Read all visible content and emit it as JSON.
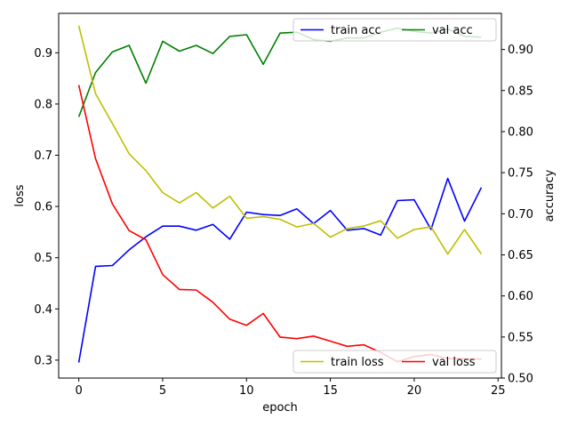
{
  "chart_data": {
    "type": "line",
    "xlabel": "epoch",
    "ylabel_left": "loss",
    "ylabel_right": "accuracy",
    "xlim": [
      -1.2,
      25.2
    ],
    "ylim_left": [
      0.265,
      0.977
    ],
    "ylim_right": [
      0.5,
      0.944
    ],
    "xticks": [
      "0",
      "5",
      "10",
      "15",
      "20",
      "25"
    ],
    "yticks_left": [
      "0.3",
      "0.4",
      "0.5",
      "0.6",
      "0.7",
      "0.8",
      "0.9"
    ],
    "yticks_right": [
      "0.50",
      "0.55",
      "0.60",
      "0.65",
      "0.70",
      "0.75",
      "0.80",
      "0.85",
      "0.90"
    ],
    "x": [
      0,
      1,
      2,
      3,
      4,
      5,
      6,
      7,
      8,
      9,
      10,
      11,
      12,
      13,
      14,
      15,
      16,
      17,
      18,
      19,
      20,
      21,
      22,
      23,
      24
    ],
    "series": [
      {
        "name": "train acc",
        "axis": "right",
        "color": "#0000ff",
        "values": [
          0.519,
          0.636,
          0.637,
          0.656,
          0.672,
          0.685,
          0.685,
          0.68,
          0.687,
          0.669,
          0.702,
          0.699,
          0.698,
          0.706,
          0.688,
          0.704,
          0.68,
          0.682,
          0.674,
          0.716,
          0.717,
          0.681,
          0.743,
          0.691,
          0.732
        ]
      },
      {
        "name": "val acc",
        "axis": "right",
        "color": "#008000",
        "values": [
          0.818,
          0.872,
          0.897,
          0.905,
          0.859,
          0.91,
          0.898,
          0.905,
          0.895,
          0.916,
          0.918,
          0.882,
          0.92,
          0.921,
          0.912,
          0.91,
          0.914,
          0.914,
          0.921,
          0.926,
          0.922,
          0.92,
          0.925,
          0.916,
          0.915
        ]
      },
      {
        "name": "train loss",
        "axis": "left",
        "color": "#bfbf00",
        "values": [
          0.953,
          0.82,
          0.762,
          0.703,
          0.67,
          0.627,
          0.607,
          0.627,
          0.597,
          0.62,
          0.577,
          0.58,
          0.575,
          0.56,
          0.567,
          0.54,
          0.557,
          0.562,
          0.572,
          0.538,
          0.555,
          0.56,
          0.507,
          0.555,
          0.507
        ]
      },
      {
        "name": "val loss",
        "axis": "left",
        "color": "#ff0000",
        "values": [
          0.837,
          0.693,
          0.605,
          0.553,
          0.535,
          0.467,
          0.438,
          0.437,
          0.413,
          0.38,
          0.368,
          0.391,
          0.345,
          0.342,
          0.347,
          0.337,
          0.327,
          0.33,
          0.315,
          0.297,
          0.307,
          0.311,
          0.303,
          0.303,
          0.302
        ]
      }
    ],
    "legends": [
      {
        "placement": "upper-right",
        "entries": [
          "train acc",
          "val acc"
        ]
      },
      {
        "placement": "lower-right",
        "entries": [
          "train loss",
          "val loss"
        ]
      }
    ]
  }
}
